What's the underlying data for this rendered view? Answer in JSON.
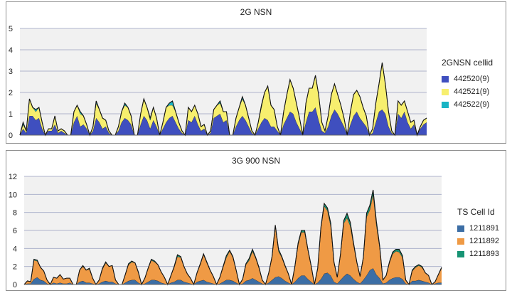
{
  "chart_data": [
    {
      "type": "area",
      "stacked": true,
      "title": "2G NSN",
      "ylim": [
        0,
        5
      ],
      "yticks": [
        "0",
        "1",
        "2",
        "3",
        "4",
        "5"
      ],
      "legend_title": "2GNSN cellid",
      "legend_position": "right",
      "grid": true,
      "series": [
        {
          "name": "442520(9)",
          "color": "#3f4fbf",
          "values": [
            0.0,
            0.3,
            0.1,
            0.9,
            0.9,
            0.7,
            0.8,
            0.3,
            0.0,
            0.2,
            0.2,
            0.5,
            0.1,
            0.2,
            0.1,
            0.0,
            0.0,
            0.6,
            0.9,
            0.4,
            0.5,
            0.3,
            0.0,
            0.2,
            0.8,
            0.6,
            0.3,
            0.4,
            0.1,
            0.0,
            0.0,
            0.2,
            0.6,
            0.8,
            0.7,
            0.5,
            0.0,
            0.0,
            0.5,
            0.9,
            0.7,
            0.3,
            0.7,
            0.4,
            0.0,
            0.3,
            0.6,
            0.8,
            0.9,
            0.6,
            0.3,
            0.1,
            0.0,
            0.7,
            0.6,
            0.9,
            0.5,
            0.2,
            0.3,
            0.0,
            0.1,
            0.8,
            0.9,
            1.0,
            0.6,
            0.7,
            0.0,
            0.0,
            0.4,
            0.7,
            0.9,
            0.7,
            0.4,
            0.1,
            0.0,
            0.3,
            0.6,
            0.8,
            0.7,
            0.4,
            0.4,
            0.2,
            0.0,
            0.5,
            0.8,
            1.1,
            1.0,
            0.6,
            0.3,
            0.0,
            0.6,
            1.1,
            1.1,
            1.3,
            0.7,
            0.2,
            0.1,
            0.4,
            0.9,
            1.2,
            1.0,
            0.7,
            0.4,
            0.0,
            0.5,
            0.9,
            1.1,
            0.8,
            0.6,
            0.4,
            0.0,
            0.1,
            0.6,
            1.1,
            1.2,
            1.0,
            0.4,
            0.1,
            0.0,
            1.0,
            0.8,
            1.1,
            0.6,
            0.3,
            0.5,
            0.0,
            0.3,
            0.5,
            0.6
          ]
        },
        {
          "name": "442521(9)",
          "color": "#f7ef6e",
          "values": [
            0.0,
            0.2,
            0.1,
            0.8,
            0.4,
            0.4,
            0.5,
            0.3,
            0.0,
            0.1,
            0.1,
            0.4,
            0.1,
            0.1,
            0.1,
            0.0,
            0.0,
            0.5,
            0.5,
            0.6,
            0.4,
            0.2,
            0.0,
            0.2,
            0.7,
            0.6,
            0.5,
            0.3,
            0.1,
            0.0,
            0.0,
            0.2,
            0.5,
            0.6,
            0.6,
            0.4,
            0.0,
            0.0,
            0.5,
            0.8,
            0.6,
            0.4,
            0.6,
            0.4,
            0.0,
            0.3,
            0.7,
            0.6,
            0.5,
            0.5,
            0.3,
            0.1,
            0.0,
            0.6,
            0.5,
            0.5,
            0.5,
            0.2,
            0.2,
            0.0,
            0.1,
            0.4,
            0.5,
            0.5,
            0.5,
            0.4,
            0.0,
            0.0,
            0.4,
            0.6,
            0.8,
            0.7,
            0.4,
            0.1,
            0.0,
            0.3,
            0.7,
            1.2,
            1.6,
            1.0,
            0.8,
            0.2,
            0.0,
            0.6,
            1.1,
            1.5,
            1.2,
            0.9,
            0.5,
            0.0,
            0.9,
            1.1,
            1.1,
            1.5,
            1.2,
            0.4,
            0.1,
            0.5,
            1.0,
            1.2,
            0.9,
            0.7,
            0.4,
            0.0,
            0.6,
            1.0,
            1.0,
            1.0,
            0.7,
            0.5,
            0.0,
            0.2,
            0.9,
            1.3,
            2.2,
            1.4,
            0.7,
            0.1,
            0.0,
            0.6,
            0.6,
            0.5,
            0.5,
            0.3,
            0.2,
            0.0,
            0.1,
            0.2,
            0.2
          ]
        },
        {
          "name": "442522(9)",
          "color": "#19b4c4",
          "values": [
            0.0,
            0.1,
            0.0,
            0.0,
            0.0,
            0.1,
            0.0,
            0.0,
            0.0,
            0.0,
            0.0,
            0.0,
            0.0,
            0.0,
            0.0,
            0.0,
            0.0,
            0.0,
            0.0,
            0.1,
            0.0,
            0.0,
            0.0,
            0.0,
            0.1,
            0.0,
            0.0,
            0.0,
            0.0,
            0.0,
            0.0,
            0.0,
            0.0,
            0.1,
            0.0,
            0.0,
            0.0,
            0.0,
            0.0,
            0.0,
            0.0,
            0.1,
            0.0,
            0.0,
            0.0,
            0.0,
            0.0,
            0.1,
            0.2,
            0.0,
            0.0,
            0.0,
            0.0,
            0.0,
            0.0,
            0.0,
            0.0,
            0.0,
            0.0,
            0.0,
            0.0,
            0.0,
            0.0,
            0.1,
            0.0,
            0.0,
            0.0,
            0.0,
            0.0,
            0.0,
            0.1,
            0.0,
            0.0,
            0.0,
            0.0,
            0.0,
            0.1,
            0.0,
            0.0,
            0.0,
            0.0,
            0.0,
            0.0,
            0.0,
            0.0,
            0.0,
            0.0,
            0.0,
            0.0,
            0.0,
            0.0,
            0.0,
            0.0,
            0.0,
            0.0,
            0.0,
            0.0,
            0.0,
            0.0,
            0.0,
            0.0,
            0.0,
            0.0,
            0.0,
            0.0,
            0.0,
            0.0,
            0.0,
            0.0,
            0.0,
            0.0,
            0.0,
            0.0,
            0.0,
            0.0,
            0.0,
            0.0,
            0.0,
            0.0,
            0.0,
            0.0,
            0.0,
            0.0,
            0.0,
            0.0,
            0.0,
            0.0,
            0.0,
            0.0
          ]
        }
      ]
    },
    {
      "type": "area",
      "stacked": true,
      "title": "3G 900 NSN",
      "ylim": [
        0,
        12
      ],
      "yticks": [
        "0",
        "2",
        "4",
        "6",
        "8",
        "10",
        "12"
      ],
      "legend_title": "TS Cell Id",
      "legend_position": "right",
      "grid": true,
      "series": [
        {
          "name": "1211891",
          "color": "#3c6ea5",
          "values": [
            0.0,
            0.1,
            0.1,
            0.6,
            0.8,
            0.5,
            0.4,
            0.1,
            0.0,
            0.2,
            0.1,
            0.2,
            0.1,
            0.1,
            0.2,
            0.0,
            0.0,
            0.3,
            0.4,
            0.2,
            0.2,
            0.1,
            0.0,
            0.1,
            0.3,
            0.4,
            0.3,
            0.3,
            0.1,
            0.0,
            0.0,
            0.2,
            0.4,
            0.5,
            0.5,
            0.2,
            0.0,
            0.1,
            0.3,
            0.5,
            0.5,
            0.4,
            0.2,
            0.1,
            0.0,
            0.2,
            0.3,
            0.5,
            0.5,
            0.3,
            0.2,
            0.1,
            0.0,
            0.3,
            0.4,
            0.5,
            0.3,
            0.2,
            0.1,
            0.0,
            0.1,
            0.3,
            0.5,
            0.5,
            0.4,
            0.2,
            0.0,
            0.1,
            0.4,
            0.5,
            0.7,
            0.5,
            0.3,
            0.1,
            0.0,
            0.2,
            0.5,
            0.8,
            0.9,
            0.7,
            0.4,
            0.2,
            0.0,
            0.3,
            0.7,
            1.0,
            1.0,
            0.6,
            0.3,
            0.0,
            0.2,
            0.6,
            1.2,
            1.3,
            1.0,
            0.3,
            0.1,
            0.5,
            0.9,
            1.2,
            1.0,
            0.6,
            0.3,
            0.1,
            0.5,
            1.0,
            1.6,
            1.8,
            1.1,
            0.7,
            0.1,
            0.2,
            0.5,
            0.7,
            0.8,
            0.8,
            0.6,
            0.1,
            0.0,
            0.4,
            0.4,
            0.5,
            0.4,
            0.3,
            0.2,
            0.0,
            0.1,
            0.2,
            0.2
          ]
        },
        {
          "name": "1211892",
          "color": "#ef9a45",
          "values": [
            0.0,
            0.3,
            0.2,
            2.1,
            1.8,
            1.4,
            1.1,
            0.4,
            0.0,
            0.6,
            0.6,
            0.9,
            0.5,
            0.6,
            0.5,
            0.0,
            0.0,
            1.3,
            1.6,
            1.4,
            1.5,
            0.6,
            0.0,
            0.4,
            1.4,
            2.0,
            1.7,
            1.8,
            0.4,
            0.0,
            0.0,
            0.9,
            1.8,
            2.0,
            1.9,
            1.1,
            0.0,
            0.6,
            1.5,
            2.2,
            2.0,
            1.8,
            1.2,
            0.7,
            0.0,
            0.8,
            1.6,
            2.6,
            2.5,
            1.7,
            1.0,
            0.6,
            0.0,
            1.0,
            1.8,
            2.8,
            2.1,
            1.4,
            0.8,
            0.0,
            0.7,
            1.6,
            2.5,
            3.2,
            2.6,
            1.4,
            0.0,
            0.5,
            1.8,
            2.2,
            3.0,
            2.4,
            1.5,
            0.4,
            0.0,
            1.1,
            2.5,
            5.6,
            2.8,
            2.3,
            1.6,
            1.0,
            0.0,
            1.6,
            3.7,
            4.8,
            4.8,
            3.2,
            1.7,
            0.0,
            1.5,
            5.6,
            7.5,
            6.9,
            5.5,
            2.1,
            0.7,
            2.8,
            5.9,
            6.2,
            5.5,
            3.8,
            2.1,
            0.8,
            2.4,
            6.5,
            6.7,
            8.2,
            5.5,
            3.4,
            0.4,
            0.8,
            1.9,
            2.7,
            2.9,
            2.8,
            2.4,
            0.4,
            0.0,
            1.1,
            1.5,
            1.6,
            1.5,
            1.0,
            0.8,
            0.0,
            0.2,
            0.9,
            1.6
          ]
        },
        {
          "name": "1211893",
          "color": "#179474",
          "values": [
            0.0,
            0.0,
            0.0,
            0.1,
            0.1,
            0.0,
            0.0,
            0.0,
            0.0,
            0.0,
            0.0,
            0.0,
            0.0,
            0.0,
            0.0,
            0.0,
            0.0,
            0.0,
            0.1,
            0.0,
            0.1,
            0.0,
            0.0,
            0.0,
            0.1,
            0.1,
            0.0,
            0.0,
            0.0,
            0.0,
            0.0,
            0.0,
            0.1,
            0.1,
            0.0,
            0.1,
            0.0,
            0.0,
            0.0,
            0.1,
            0.1,
            0.0,
            0.0,
            0.0,
            0.0,
            0.0,
            0.1,
            0.2,
            0.1,
            0.0,
            0.0,
            0.0,
            0.0,
            0.0,
            0.1,
            0.1,
            0.1,
            0.0,
            0.0,
            0.0,
            0.0,
            0.1,
            0.2,
            0.1,
            0.1,
            0.0,
            0.0,
            0.0,
            0.1,
            0.2,
            0.2,
            0.1,
            0.1,
            0.0,
            0.0,
            0.0,
            0.1,
            0.2,
            0.2,
            0.1,
            0.1,
            0.0,
            0.0,
            0.1,
            0.2,
            0.2,
            0.2,
            0.1,
            0.1,
            0.0,
            0.1,
            0.2,
            0.3,
            0.3,
            0.3,
            0.1,
            0.0,
            0.1,
            0.3,
            0.5,
            0.4,
            0.2,
            0.1,
            0.0,
            0.1,
            0.4,
            0.5,
            0.5,
            0.4,
            0.2,
            0.0,
            0.0,
            0.1,
            0.2,
            0.2,
            0.3,
            0.2,
            0.0,
            0.0,
            0.1,
            0.1,
            0.1,
            0.1,
            0.0,
            0.0,
            0.0,
            0.0,
            0.0,
            0.1
          ]
        }
      ]
    }
  ]
}
